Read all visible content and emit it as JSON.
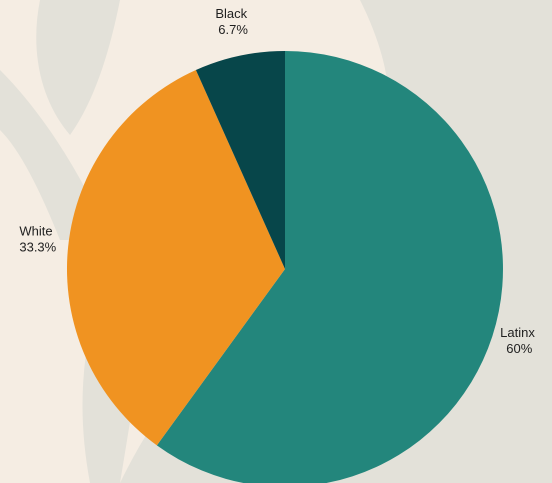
{
  "colors": {
    "background": "#f5ede3",
    "decor": "#e3e1d9"
  },
  "chart_data": {
    "type": "pie",
    "title": "",
    "start_angle_deg": 0,
    "direction": "clockwise",
    "slices": [
      {
        "label": "Latinx",
        "value": 60,
        "value_label": "60%",
        "color": "#23867c"
      },
      {
        "label": "White",
        "value": 33.3,
        "value_label": "33.3%",
        "color": "#f09321"
      },
      {
        "label": "Black",
        "value": 6.7,
        "value_label": "6.7%",
        "color": "#07464a"
      }
    ],
    "legend": "none"
  }
}
